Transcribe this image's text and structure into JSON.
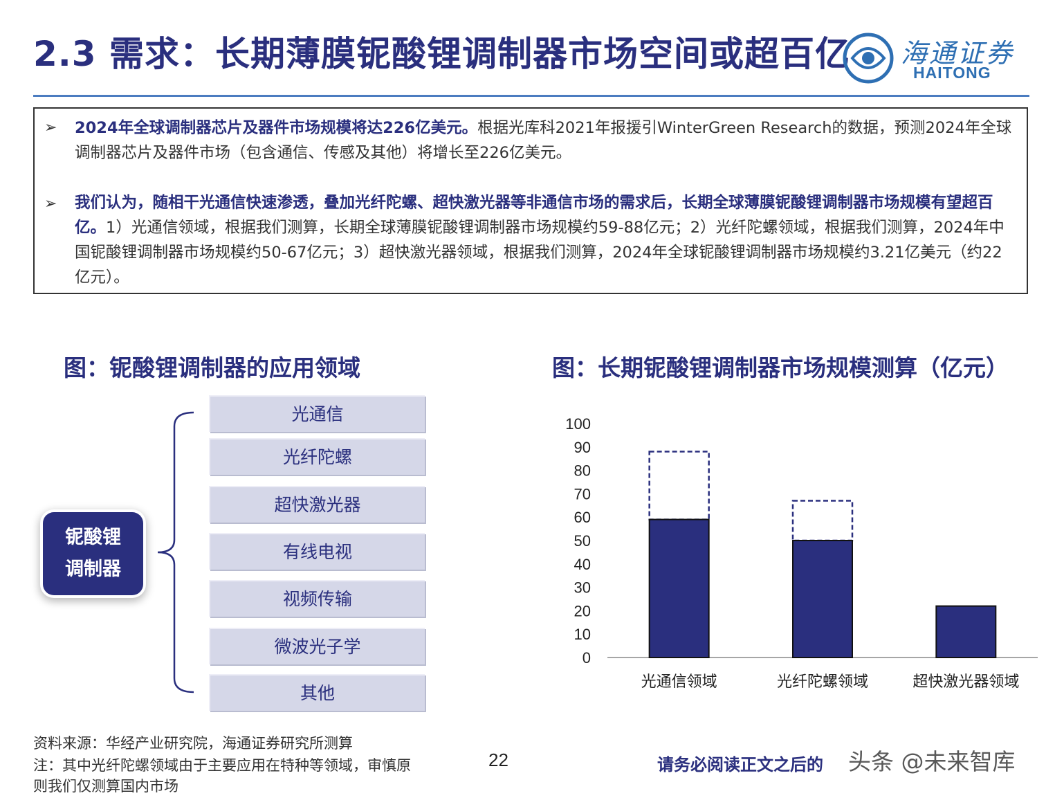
{
  "header": {
    "title": "2.3 需求：长期薄膜铌酸锂调制器市场空间或超百亿",
    "logo_cn": "海通证券",
    "logo_en": "HAITONG"
  },
  "summary": {
    "p1_bold": "2024年全球调制器芯片及器件市场规模将达226亿美元。",
    "p1_rest": "根据光库科2021年报援引WinterGreen Research的数据，预测2024年全球调制器芯片及器件市场（包含通信、传感及其他）将增长至226亿美元。",
    "p2_bold": "我们认为，随相干光通信快速渗透，叠加光纤陀螺、超快激光器等非通信市场的需求后，长期全球薄膜铌酸锂调制器市场规模有望超百亿。",
    "p2_rest": "1）光通信领域，根据我们测算，长期全球薄膜铌酸锂调制器市场规模约59-88亿元；2）光纤陀螺领域，根据我们测算，2024年中国铌酸锂调制器市场规模约50-67亿元；3）超快激光器领域，根据我们测算，2024年全球铌酸锂调制器市场规模约3.21亿美元（约22亿元）。"
  },
  "left_figure": {
    "title": "图：铌酸锂调制器的应用领域",
    "center_line1": "铌酸锂",
    "center_line2": "调制器",
    "items": [
      "光通信",
      "光纤陀螺",
      "超快激光器",
      "有线电视",
      "视频传输",
      "微波光子学",
      "其他"
    ]
  },
  "right_figure": {
    "title": "图：长期铌酸锂调制器市场规模测算（亿元）"
  },
  "chart_data": {
    "type": "bar",
    "categories": [
      "光通信领域",
      "光纤陀螺领域",
      "超快激光器领域"
    ],
    "series": [
      {
        "values": [
          59,
          50,
          22
        ]
      },
      {
        "values": [
          88,
          67,
          22
        ]
      }
    ],
    "ylim": [
      0,
      100
    ],
    "yticks": [
      0,
      10,
      20,
      30,
      40,
      50,
      60,
      70,
      80,
      90,
      100
    ],
    "grid": false,
    "bar_color": "#2a2f7e"
  },
  "footer": {
    "source": "资料来源：华经产业研究院，海通证券研究所测算",
    "note_line1": "注：其中光纤陀螺领域由于主要应用在特种等领域，审慎原",
    "note_line2": "则我们仅测算国内市场",
    "page": "22",
    "disclaimer": "请务必阅读正文之后的",
    "watermark": "头条 @未来智库"
  }
}
